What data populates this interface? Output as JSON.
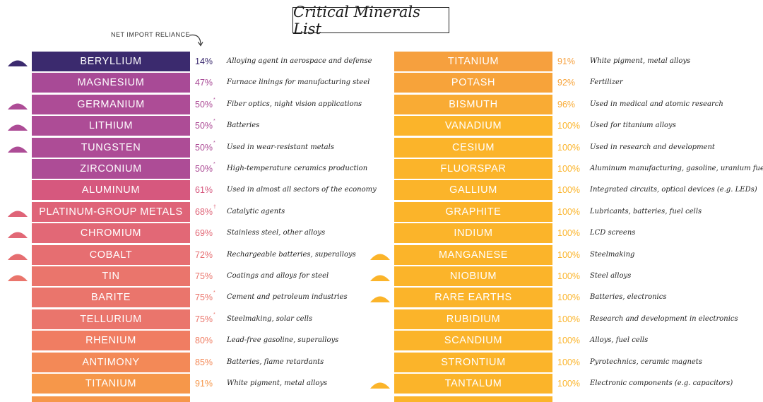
{
  "title": "Critical Minerals List",
  "net_import_label": "NET IMPORT RELIANCE",
  "chart_data": {
    "type": "table",
    "title": "Critical Minerals List",
    "columns": [
      "mineral",
      "net_import_reliance",
      "use"
    ],
    "left": [
      {
        "mineral": "BERYLLIUM",
        "pct": "14%",
        "mark": "",
        "use": "Alloying agent in aerospace and defense",
        "triangle": true,
        "color": "#3b2a6e",
        "pct_color": "#3b2a6e"
      },
      {
        "mineral": "MAGNESIUM",
        "pct": "47%",
        "mark": "",
        "use": "Furnace linings for manufacturing steel",
        "triangle": false,
        "color": "#a84a96",
        "pct_color": "#a84a96"
      },
      {
        "mineral": "GERMANIUM",
        "pct": "50%",
        "mark": "*",
        "use": "Fiber optics, night vision applications",
        "triangle": true,
        "color": "#ad4c96",
        "pct_color": "#ad4c96"
      },
      {
        "mineral": "LITHIUM",
        "pct": "50%",
        "mark": "*",
        "use": "Batteries",
        "triangle": true,
        "color": "#ad4c96",
        "pct_color": "#ad4c96"
      },
      {
        "mineral": "TUNGSTEN",
        "pct": "50%",
        "mark": "*",
        "use": "Used in wear-resistant metals",
        "triangle": true,
        "color": "#ad4c96",
        "pct_color": "#ad4c96"
      },
      {
        "mineral": "ZIRCONIUM",
        "pct": "50%",
        "mark": "*",
        "use": "High-temperature ceramics production",
        "triangle": false,
        "color": "#ad4c96",
        "pct_color": "#ad4c96"
      },
      {
        "mineral": "ALUMINUM",
        "pct": "61%",
        "mark": "",
        "use": "Used in almost all sectors of the economy",
        "triangle": false,
        "color": "#d6587e",
        "pct_color": "#d6587e"
      },
      {
        "mineral": "PLATINUM-GROUP METALS",
        "pct": "68%",
        "mark": "†",
        "use": "Catalytic agents",
        "triangle": true,
        "color": "#df6478",
        "pct_color": "#df6478"
      },
      {
        "mineral": "CHROMIUM",
        "pct": "69%",
        "mark": "",
        "use": "Stainless steel, other alloys",
        "triangle": true,
        "color": "#e26876",
        "pct_color": "#e26876"
      },
      {
        "mineral": "COBALT",
        "pct": "72%",
        "mark": "",
        "use": "Rechargeable batteries, superalloys",
        "triangle": true,
        "color": "#e66e71",
        "pct_color": "#e66e71"
      },
      {
        "mineral": "TIN",
        "pct": "75%",
        "mark": "",
        "use": "Coatings and alloys for steel",
        "triangle": true,
        "color": "#ea756c",
        "pct_color": "#ea756c"
      },
      {
        "mineral": "BARITE",
        "pct": "75%",
        "mark": "*",
        "use": "Cement and petroleum industries",
        "triangle": false,
        "color": "#ea756c",
        "pct_color": "#ea756c"
      },
      {
        "mineral": "TELLURIUM",
        "pct": "75%",
        "mark": "*",
        "use": "Steelmaking, solar cells",
        "triangle": false,
        "color": "#ea756c",
        "pct_color": "#ea756c"
      },
      {
        "mineral": "RHENIUM",
        "pct": "80%",
        "mark": "",
        "use": "Lead-free gasoline, superalloys",
        "triangle": false,
        "color": "#f07d62",
        "pct_color": "#f07d62"
      },
      {
        "mineral": "ANTIMONY",
        "pct": "85%",
        "mark": "",
        "use": "Batteries, flame retardants",
        "triangle": false,
        "color": "#f38957",
        "pct_color": "#f38957"
      },
      {
        "mineral": "TITANIUM",
        "pct": "91%",
        "mark": "",
        "use": "White pigment, metal alloys",
        "triangle": false,
        "color": "#f6974a",
        "pct_color": "#f6974a"
      }
    ],
    "right": [
      {
        "mineral": "TITANIUM",
        "pct": "91%",
        "mark": "",
        "use": "White pigment, metal alloys",
        "triangle": false,
        "color": "#f6a03e",
        "pct_color": "#f6a03e"
      },
      {
        "mineral": "POTASH",
        "pct": "92%",
        "mark": "",
        "use": "Fertilizer",
        "triangle": false,
        "color": "#f7a33a",
        "pct_color": "#f7a33a"
      },
      {
        "mineral": "BISMUTH",
        "pct": "96%",
        "mark": "",
        "use": "Used in medical and atomic research",
        "triangle": false,
        "color": "#f9ab34",
        "pct_color": "#f9ab34"
      },
      {
        "mineral": "VANADIUM",
        "pct": "100%",
        "mark": "",
        "use": "Used for titanium alloys",
        "triangle": false,
        "color": "#fbb42a",
        "pct_color": "#fbb42a"
      },
      {
        "mineral": "CESIUM",
        "pct": "100%",
        "mark": "",
        "use": "Used in research and development",
        "triangle": false,
        "color": "#fbb42a",
        "pct_color": "#fbb42a"
      },
      {
        "mineral": "FLUORSPAR",
        "pct": "100%",
        "mark": "",
        "use": "Aluminum manufacturing, gasoline, uranium fuel",
        "triangle": false,
        "color": "#fbb42a",
        "pct_color": "#fbb42a"
      },
      {
        "mineral": "GALLIUM",
        "pct": "100%",
        "mark": "",
        "use": "Integrated circuits, optical devices (e.g. LEDs)",
        "triangle": false,
        "color": "#fbb42a",
        "pct_color": "#fbb42a"
      },
      {
        "mineral": "GRAPHITE",
        "pct": "100%",
        "mark": "",
        "use": "Lubricants, batteries, fuel cells",
        "triangle": false,
        "color": "#fbb42a",
        "pct_color": "#fbb42a"
      },
      {
        "mineral": "INDIUM",
        "pct": "100%",
        "mark": "",
        "use": "LCD screens",
        "triangle": false,
        "color": "#fbb42a",
        "pct_color": "#fbb42a"
      },
      {
        "mineral": "MANGANESE",
        "pct": "100%",
        "mark": "",
        "use": "Steelmaking",
        "triangle": true,
        "color": "#fbb42a",
        "pct_color": "#fbb42a"
      },
      {
        "mineral": "NIOBIUM",
        "pct": "100%",
        "mark": "",
        "use": "Steel alloys",
        "triangle": true,
        "color": "#fbb42a",
        "pct_color": "#fbb42a"
      },
      {
        "mineral": "RARE EARTHS",
        "pct": "100%",
        "mark": "",
        "use": "Batteries, electronics",
        "triangle": true,
        "color": "#fbb42a",
        "pct_color": "#fbb42a"
      },
      {
        "mineral": "RUBIDIUM",
        "pct": "100%",
        "mark": "",
        "use": "Research and development in electronics",
        "triangle": false,
        "color": "#fbb42a",
        "pct_color": "#fbb42a"
      },
      {
        "mineral": "SCANDIUM",
        "pct": "100%",
        "mark": "",
        "use": "Alloys, fuel cells",
        "triangle": false,
        "color": "#fbb42a",
        "pct_color": "#fbb42a"
      },
      {
        "mineral": "STRONTIUM",
        "pct": "100%",
        "mark": "",
        "use": "Pyrotechnics, ceramic magnets",
        "triangle": false,
        "color": "#fbb42a",
        "pct_color": "#fbb42a"
      },
      {
        "mineral": "TANTALUM",
        "pct": "100%",
        "mark": "",
        "use": "Electronic components (e.g. capacitors)",
        "triangle": true,
        "color": "#fbb42a",
        "pct_color": "#fbb42a"
      }
    ]
  }
}
